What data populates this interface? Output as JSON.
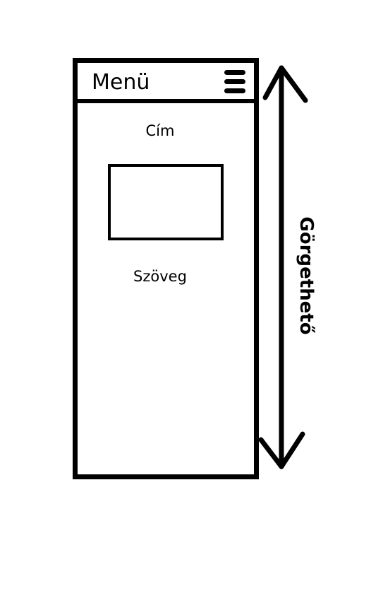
{
  "mockup": {
    "menu_label": "Menü",
    "menu_icon": "hamburger-icon",
    "title_placeholder": "Cím",
    "text_placeholder": "Szöveg"
  },
  "annotation": {
    "scroll_label": "Görgethető",
    "arrow_icon": "double-headed-vertical-arrow"
  }
}
